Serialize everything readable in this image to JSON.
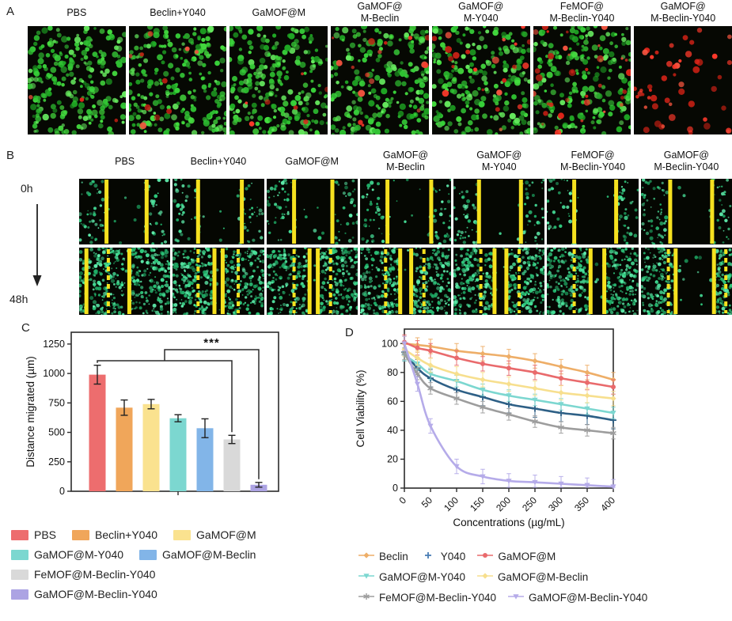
{
  "figure": {
    "panelA": {
      "tag": "A",
      "conditions": [
        "PBS",
        "Beclin+Y040",
        "GaMOF@M",
        "GaMOF@\nM-Beclin",
        "GaMOF@\nM-Y040",
        "FeMOF@\nM-Beclin-Y040",
        "GaMOF@\nM-Beclin-Y040"
      ],
      "images": [
        {
          "greens": 235,
          "reds": 3
        },
        {
          "greens": 228,
          "reds": 10
        },
        {
          "greens": 228,
          "reds": 7
        },
        {
          "greens": 215,
          "reds": 16
        },
        {
          "greens": 210,
          "reds": 22
        },
        {
          "greens": 200,
          "reds": 34
        },
        {
          "greens": 0,
          "reds": 52
        }
      ]
    },
    "panelB": {
      "tag": "B",
      "conditions": [
        "PBS",
        "Beclin+Y040",
        "GaMOF@M",
        "GaMOF@\nM-Beclin",
        "GaMOF@\nM-Y040",
        "FeMOF@\nM-Beclin-Y040",
        "GaMOF@\nM-Beclin-Y040"
      ],
      "time_top": "0h",
      "time_bottom": "48h",
      "density0": 135,
      "density48": 430,
      "row0": [
        {
          "solid": [
            0.3,
            0.74
          ],
          "gap": [
            0.32,
            0.72
          ]
        },
        {
          "solid": [
            0.28,
            0.76
          ],
          "gap": [
            0.3,
            0.74
          ]
        },
        {
          "solid": [
            0.3,
            0.72
          ],
          "gap": [
            0.32,
            0.7
          ]
        },
        {
          "solid": [
            0.3,
            0.78
          ],
          "gap": [
            0.32,
            0.76
          ]
        },
        {
          "solid": [
            0.28,
            0.74
          ],
          "gap": [
            0.3,
            0.72
          ]
        },
        {
          "solid": [
            0.3,
            0.76
          ],
          "gap": [
            0.32,
            0.74
          ]
        },
        {
          "solid": [
            0.32,
            0.78
          ],
          "gap": [
            0.34,
            0.76
          ]
        }
      ],
      "row48": [
        {
          "dashed": [
            0.32
          ],
          "solid": [
            0.08,
            0.55
          ],
          "gap": [
            0.5,
            0.55
          ]
        },
        {
          "dashed": [
            0.28,
            0.72
          ],
          "solid": [
            0.46,
            0.55
          ],
          "gap": [
            0.46,
            0.55
          ]
        },
        {
          "dashed": [
            0.3,
            0.7
          ],
          "solid": [
            0.47,
            0.56
          ],
          "gap": [
            0.47,
            0.56
          ]
        },
        {
          "dashed": [
            0.28,
            0.7
          ],
          "solid": [
            0.44,
            0.56
          ],
          "gap": [
            0.44,
            0.56
          ]
        },
        {
          "dashed": [
            0.3,
            0.72
          ],
          "solid": [
            0.45,
            0.58
          ],
          "gap": [
            0.45,
            0.58
          ]
        },
        {
          "dashed": [
            0.3
          ],
          "solid": [
            0.48,
            0.63
          ],
          "gap": [
            0.48,
            0.63
          ]
        },
        {
          "dashed": [
            0.3,
            0.93
          ],
          "solid": [
            0.38,
            0.8
          ],
          "gap": [
            0.38,
            0.8
          ]
        }
      ]
    },
    "panelC": {
      "tag": "C"
    },
    "panelD": {
      "tag": "D"
    },
    "legendC": {
      "items": [
        {
          "label": "PBS",
          "color": "#ed6d6e"
        },
        {
          "label": "Beclin+Y040",
          "color": "#f0a65a"
        },
        {
          "label": "GaMOF@M",
          "color": "#fae28f"
        },
        {
          "label": "GaMOF@M-Y040",
          "color": "#7cd7d0"
        },
        {
          "label": "GaMOF@M-Beclin",
          "color": "#82b5e8"
        },
        {
          "label": "FeMOF@M-Beclin-Y040",
          "color": "#d9d9d9"
        },
        {
          "label": "GaMOF@M-Beclin-Y040",
          "color": "#aca3e3"
        }
      ]
    },
    "legendD": {
      "items": [
        {
          "label": "Beclin",
          "color": "#eeae68",
          "marker": "diamond"
        },
        {
          "label": "Y040",
          "color": "#4a7eb5",
          "marker": "plus"
        },
        {
          "label": "GaMOF@M",
          "color": "#e96a6c",
          "marker": "circle"
        },
        {
          "label": "GaMOF@M-Y040",
          "color": "#7cd7d0",
          "marker": "tri-down"
        },
        {
          "label": "GaMOF@M-Beclin",
          "color": "#f7df8e",
          "marker": "diamond"
        },
        {
          "label": "FeMOF@M-Beclin-Y040",
          "color": "#9d9d9d",
          "marker": "asterisk"
        },
        {
          "label": "GaMOF@M-Beclin-Y040",
          "color": "#b5abe9",
          "marker": "tri-down"
        }
      ]
    }
  },
  "chart_data": [
    {
      "type": "bar",
      "title": "",
      "xlabel": "",
      "ylabel": "Distance migrated (µm)",
      "categories": [
        "PBS",
        "Beclin+Y040",
        "GaMOF@M",
        "GaMOF@M-Y040",
        "GaMOF@M-Beclin",
        "FeMOF@M-Beclin-Y040",
        "GaMOF@M-Beclin-Y040"
      ],
      "values": [
        990,
        710,
        740,
        620,
        535,
        440,
        55
      ],
      "errors": [
        80,
        65,
        40,
        30,
        80,
        35,
        20
      ],
      "colors": [
        "#ed6d6e",
        "#f0a65a",
        "#fae28f",
        "#7cd7d0",
        "#82b5e8",
        "#d9d9d9",
        "#aca3e3"
      ],
      "ylim": [
        0,
        1350
      ],
      "yticks": [
        0,
        250,
        500,
        750,
        1000,
        1250
      ],
      "grid": false,
      "significance": {
        "label": "***",
        "from": "PBS",
        "to": [
          "FeMOF@M-Beclin-Y040",
          "GaMOF@M-Beclin-Y040"
        ]
      }
    },
    {
      "type": "line",
      "title": "",
      "xlabel": "Concentrations (µg/mL)",
      "ylabel": "Cell Viability (%)",
      "x": [
        0,
        25,
        50,
        100,
        150,
        200,
        250,
        300,
        350,
        400
      ],
      "xticks": [
        0,
        50,
        100,
        150,
        200,
        250,
        300,
        350,
        400
      ],
      "yticks": [
        0,
        20,
        40,
        60,
        80,
        100
      ],
      "ylim": [
        0,
        110
      ],
      "xlim": [
        0,
        400
      ],
      "grid": false,
      "legend_position": "bottom",
      "series": [
        {
          "name": "Beclin",
          "color": "#eeae68",
          "marker": "diamond",
          "err": 5,
          "values": [
            100,
            99,
            98,
            95,
            93,
            91,
            88,
            84,
            80,
            75
          ]
        },
        {
          "name": "Y040",
          "color": "#2e6086",
          "marker": "plus",
          "err": 6,
          "values": [
            94,
            83,
            76,
            68,
            63,
            58,
            55,
            52,
            50,
            47
          ]
        },
        {
          "name": "GaMOF@M",
          "color": "#e96a6c",
          "marker": "circle",
          "err": 5,
          "values": [
            101,
            97,
            95,
            90,
            86,
            83,
            80,
            76,
            73,
            70
          ]
        },
        {
          "name": "GaMOF@M-Y040",
          "color": "#7cd7d0",
          "marker": "tri-down",
          "err": 4,
          "values": [
            92,
            86,
            79,
            74,
            68,
            64,
            61,
            58,
            55,
            52
          ]
        },
        {
          "name": "GaMOF@M-Beclin",
          "color": "#f7df8e",
          "marker": "diamond",
          "err": 5,
          "values": [
            96,
            90,
            85,
            79,
            75,
            72,
            69,
            66,
            64,
            62
          ]
        },
        {
          "name": "FeMOF@M-Beclin-Y040",
          "color": "#9d9d9d",
          "marker": "asterisk",
          "err": 4,
          "values": [
            93,
            79,
            69,
            62,
            56,
            51,
            46,
            42,
            40,
            38
          ]
        },
        {
          "name": "GaMOF@M-Beclin-Y040",
          "color": "#b5abe9",
          "marker": "tri-down",
          "err": 5,
          "values": [
            100,
            72,
            43,
            15,
            8,
            5,
            4,
            3,
            2,
            1
          ]
        }
      ]
    }
  ]
}
